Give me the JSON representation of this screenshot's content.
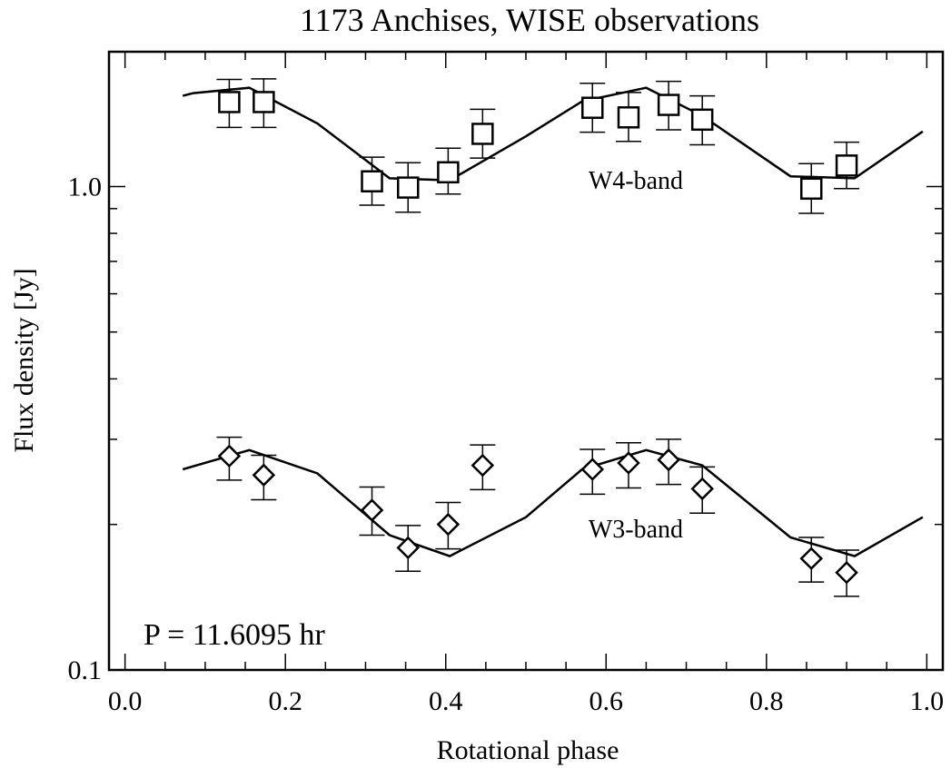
{
  "chart_data": {
    "type": "scatter",
    "title": "1173 Anchises, WISE observations",
    "xlabel": "Rotational phase",
    "ylabel": "Flux density [Jy]",
    "xlim": [
      -0.02,
      1.02
    ],
    "ylim": [
      0.1,
      1.9
    ],
    "yscale": "log",
    "x_ticks": [
      {
        "value": 0.0,
        "label": "0.0"
      },
      {
        "value": 0.2,
        "label": "0.2"
      },
      {
        "value": 0.4,
        "label": "0.4"
      },
      {
        "value": 0.6,
        "label": "0.6"
      },
      {
        "value": 0.8,
        "label": "0.8"
      },
      {
        "value": 1.0,
        "label": "1.0"
      }
    ],
    "y_ticks": [
      {
        "value": 0.1,
        "label": "0.1"
      },
      {
        "value": 1.0,
        "label": "1.0"
      }
    ],
    "annotation": "P = 11.6095 hr",
    "series": [
      {
        "name": "W4-band",
        "marker": "square",
        "x": [
          0.13,
          0.173,
          0.308,
          0.353,
          0.403,
          0.446,
          0.583,
          0.628,
          0.678,
          0.72,
          0.856,
          0.9
        ],
        "y": [
          1.495,
          1.495,
          1.025,
          0.995,
          1.07,
          1.285,
          1.455,
          1.39,
          1.475,
          1.375,
          0.99,
          1.105
        ],
        "yerr_low": [
          1.325,
          1.325,
          0.915,
          0.885,
          0.965,
          1.145,
          1.295,
          1.24,
          1.31,
          1.22,
          0.88,
          0.99
        ],
        "yerr_high": [
          1.665,
          1.67,
          1.15,
          1.12,
          1.2,
          1.445,
          1.635,
          1.565,
          1.65,
          1.54,
          1.115,
          1.235
        ],
        "model_x": [
          0.072,
          0.085,
          0.155,
          0.24,
          0.33,
          0.405,
          0.5,
          0.57,
          0.65,
          0.72,
          0.83,
          0.91,
          0.995
        ],
        "model_y": [
          1.54,
          1.56,
          1.6,
          1.35,
          1.04,
          1.03,
          1.27,
          1.5,
          1.6,
          1.4,
          1.05,
          1.04,
          1.3
        ]
      },
      {
        "name": "W3-band",
        "marker": "diamond",
        "x": [
          0.13,
          0.173,
          0.308,
          0.353,
          0.403,
          0.446,
          0.583,
          0.628,
          0.678,
          0.72,
          0.856,
          0.9
        ],
        "y": [
          0.277,
          0.253,
          0.214,
          0.179,
          0.2,
          0.265,
          0.26,
          0.268,
          0.272,
          0.237,
          0.17,
          0.159
        ],
        "yerr_low": [
          0.247,
          0.225,
          0.19,
          0.16,
          0.178,
          0.236,
          0.231,
          0.238,
          0.242,
          0.211,
          0.152,
          0.142
        ],
        "yerr_high": [
          0.303,
          0.278,
          0.239,
          0.199,
          0.222,
          0.292,
          0.286,
          0.295,
          0.3,
          0.263,
          0.188,
          0.177
        ],
        "model_x": [
          0.072,
          0.155,
          0.24,
          0.33,
          0.405,
          0.5,
          0.57,
          0.65,
          0.72,
          0.83,
          0.91,
          0.995
        ],
        "model_y": [
          0.26,
          0.285,
          0.255,
          0.19,
          0.172,
          0.207,
          0.26,
          0.285,
          0.265,
          0.188,
          0.172,
          0.207
        ]
      }
    ]
  }
}
